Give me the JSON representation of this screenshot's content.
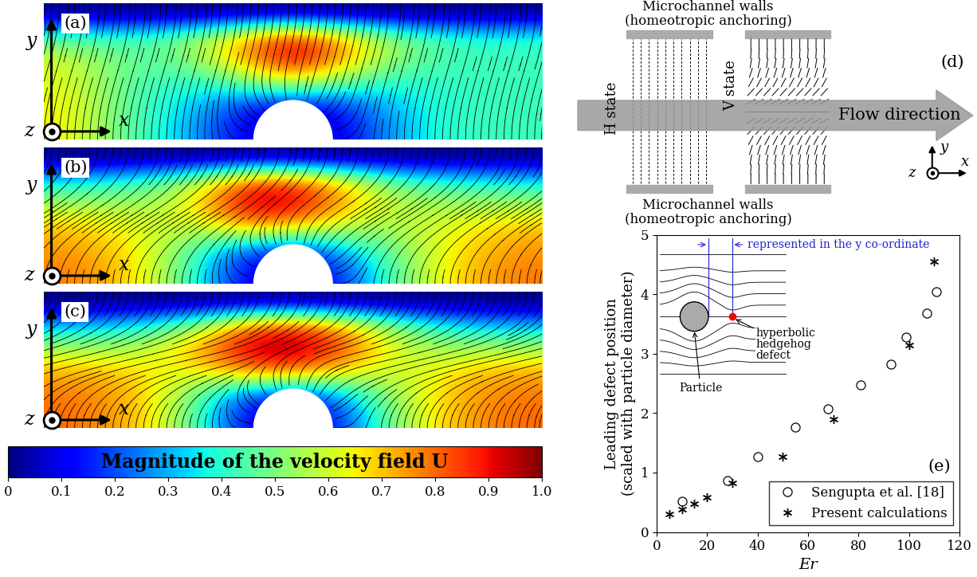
{
  "velocity_panels": [
    {
      "label": "(a)",
      "magnitude": [
        [
          0,
          0,
          0,
          0,
          0,
          0,
          0,
          0,
          0,
          0,
          0
        ],
        [
          0.45,
          0.42,
          0.45,
          0.55,
          0.75,
          0.9,
          0.75,
          0.55,
          0.45,
          0.4,
          0.4
        ],
        [
          0.6,
          0.5,
          0.45,
          0.55,
          0.75,
          0.95,
          0.75,
          0.55,
          0.45,
          0.42,
          0.42
        ],
        [
          0.62,
          0.5,
          0.42,
          0.4,
          0.5,
          0.6,
          0.5,
          0.4,
          0.4,
          0.42,
          0.42
        ],
        [
          0.65,
          0.5,
          0.4,
          0.3,
          0.15,
          0.1,
          0.15,
          0.3,
          0.38,
          0.42,
          0.42
        ],
        [
          0.65,
          0.5,
          0.4,
          0.25,
          0.1,
          0.05,
          0.1,
          0.25,
          0.38,
          0.42,
          0.42
        ]
      ]
    },
    {
      "label": "(b)",
      "magnitude": [
        [
          0,
          0,
          0,
          0,
          0,
          0,
          0,
          0,
          0,
          0,
          0
        ],
        [
          0.35,
          0.38,
          0.45,
          0.6,
          0.85,
          0.85,
          0.7,
          0.5,
          0.4,
          0.38,
          0.35
        ],
        [
          0.55,
          0.55,
          0.55,
          0.7,
          0.95,
          0.95,
          0.75,
          0.6,
          0.55,
          0.55,
          0.55
        ],
        [
          0.7,
          0.65,
          0.6,
          0.6,
          0.75,
          0.7,
          0.6,
          0.55,
          0.6,
          0.65,
          0.7
        ],
        [
          0.75,
          0.7,
          0.6,
          0.4,
          0.2,
          0.15,
          0.3,
          0.45,
          0.6,
          0.7,
          0.75
        ],
        [
          0.78,
          0.72,
          0.6,
          0.35,
          0.1,
          0.05,
          0.15,
          0.4,
          0.6,
          0.72,
          0.78
        ]
      ]
    },
    {
      "label": "(c)",
      "magnitude": [
        [
          0,
          0,
          0,
          0,
          0,
          0,
          0,
          0,
          0,
          0,
          0
        ],
        [
          0.3,
          0.32,
          0.4,
          0.55,
          0.8,
          0.85,
          0.75,
          0.55,
          0.4,
          0.32,
          0.3
        ],
        [
          0.55,
          0.55,
          0.6,
          0.75,
          0.95,
          1.0,
          0.85,
          0.65,
          0.55,
          0.55,
          0.55
        ],
        [
          0.72,
          0.7,
          0.65,
          0.65,
          0.8,
          0.8,
          0.7,
          0.6,
          0.62,
          0.7,
          0.72
        ],
        [
          0.78,
          0.75,
          0.65,
          0.45,
          0.2,
          0.15,
          0.3,
          0.5,
          0.65,
          0.75,
          0.78
        ],
        [
          0.8,
          0.75,
          0.65,
          0.4,
          0.1,
          0.05,
          0.15,
          0.45,
          0.65,
          0.75,
          0.8
        ]
      ]
    }
  ],
  "coordinate_labels": {
    "x": "x",
    "y": "y",
    "z": "z"
  },
  "colorbar": {
    "label": "Magnitude of the velocity field U",
    "range": [
      0,
      1
    ],
    "ticks": [
      0,
      0.1,
      0.2,
      0.3,
      0.4,
      0.5,
      0.6,
      0.7,
      0.8,
      0.9,
      {
        "value": 1,
        "label": "1.0"
      }
    ]
  },
  "schematic": {
    "label": "(d)",
    "wall_label": "Microchannel walls\n(homeotropic anchoring)",
    "flow_label": "Flow direction",
    "states": [
      "H state",
      "V state"
    ],
    "coordinate_labels": {
      "x": "x",
      "y": "y",
      "z": "z"
    }
  },
  "chart_data": {
    "type": "scatter",
    "xlabel": "Er",
    "ylabel": "Leading defect position\n(scaled with particle diameter)",
    "xlim": [
      0,
      120
    ],
    "ylim": [
      0,
      5
    ],
    "xticks": [
      0,
      20,
      40,
      60,
      80,
      100,
      120
    ],
    "yticks": [
      0,
      1,
      2,
      3,
      4,
      5
    ],
    "legend": "lower right",
    "series": [
      {
        "name": "Sengupta et al. [18]",
        "marker": "circle",
        "color": "#000000",
        "x": [
          10,
          28,
          40,
          55,
          68,
          81,
          93,
          99,
          107,
          111
        ],
        "values": [
          0.52,
          0.87,
          1.27,
          1.77,
          2.07,
          2.48,
          2.82,
          3.28,
          3.68,
          4.05
        ]
      },
      {
        "name": "Present calculations",
        "marker": "star",
        "color": "#000000",
        "x": [
          5,
          10,
          15,
          20,
          30,
          50,
          70,
          100,
          110
        ],
        "values": [
          0.3,
          0.38,
          0.47,
          0.58,
          0.82,
          1.27,
          1.9,
          3.15,
          4.55
        ]
      }
    ],
    "annotations": {
      "panel": "(e)",
      "dimension": "represented in the y co-ordinate",
      "particle": "Particle",
      "defect": "hyperbolic\nhedgehog\ndefect"
    }
  }
}
